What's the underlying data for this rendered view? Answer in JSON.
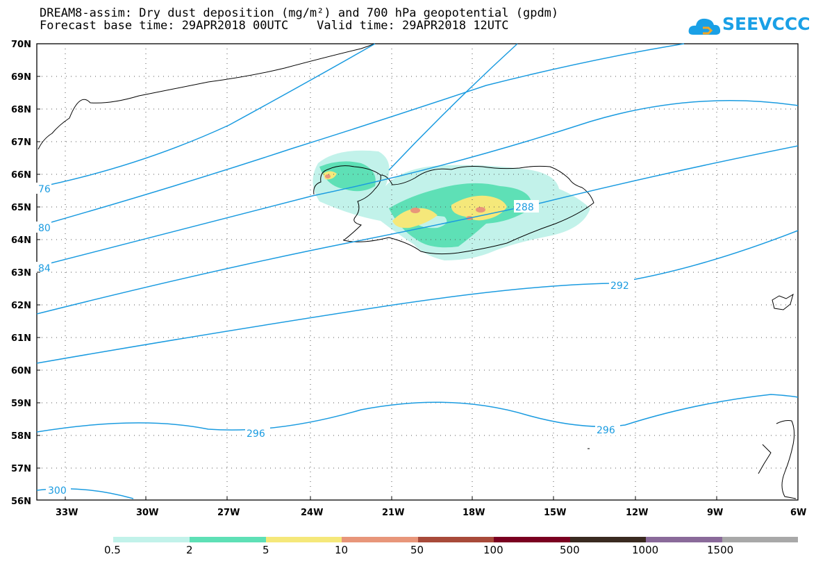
{
  "title": {
    "line1": "DREAM8-assim: Dry dust deposition (mg/m²) and 700 hPa geopotential (gpdm)",
    "line2": "Forecast base time: 29APR2018 00UTC    Valid time: 29APR2018 12UTC"
  },
  "logo": {
    "text": "SEEVCCC",
    "icon": "cloud-icon",
    "color": "#1aa0e6"
  },
  "map": {
    "lat_labels": [
      "70N",
      "69N",
      "68N",
      "67N",
      "66N",
      "65N",
      "64N",
      "63N",
      "62N",
      "61N",
      "60N",
      "59N",
      "58N",
      "57N",
      "56N"
    ],
    "lon_labels": [
      "33W",
      "30W",
      "27W",
      "24W",
      "21W",
      "18W",
      "15W",
      "12W",
      "9W",
      "6W"
    ],
    "contour_labels": [
      "76",
      "80",
      "84",
      "288",
      "292",
      "296",
      "296",
      "300"
    ],
    "contour_color": "#1a9be0"
  },
  "legend": {
    "labels": [
      "0.5",
      "2",
      "5",
      "10",
      "50",
      "100",
      "500",
      "1000",
      "1500"
    ],
    "colors": [
      "#c2f2ea",
      "#5ee0b6",
      "#f5e87a",
      "#e8967a",
      "#a84a3a",
      "#7a0020",
      "#3a2a20",
      "#8a6a9a",
      "#a8a8a8"
    ]
  }
}
